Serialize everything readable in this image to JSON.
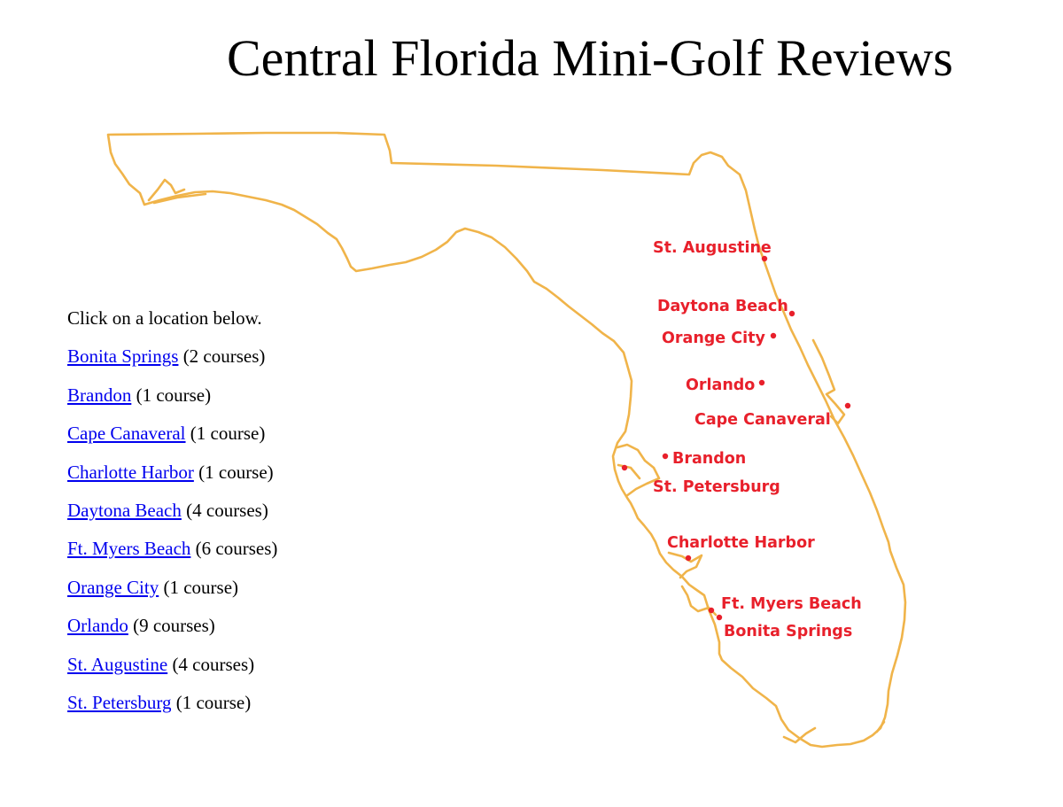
{
  "page": {
    "title": "Central Florida Mini-Golf Reviews",
    "instruction": "Click on a location below."
  },
  "colors": {
    "map_outline": "#F0B44A",
    "map_marker": "#E8202B",
    "link": "#0000EE"
  },
  "locations": [
    {
      "name": "Bonita Springs",
      "count": "(2 courses)"
    },
    {
      "name": "Brandon",
      "count": "(1 course)"
    },
    {
      "name": "Cape Canaveral",
      "count": "(1 course)"
    },
    {
      "name": "Charlotte Harbor",
      "count": "(1 course)"
    },
    {
      "name": "Daytona Beach",
      "count": "(4 courses)"
    },
    {
      "name": "Ft. Myers Beach",
      "count": "(6 courses)"
    },
    {
      "name": "Orange City",
      "count": "(1 course)"
    },
    {
      "name": "Orlando",
      "count": "(9 courses)"
    },
    {
      "name": "St. Augustine",
      "count": "(4 courses)"
    },
    {
      "name": "St. Petersburg",
      "count": "(1 course)"
    }
  ],
  "map": {
    "labels": {
      "st_augustine": "St. Augustine",
      "daytona_beach": "Daytona Beach",
      "orange_city": "Orange City",
      "orlando": "Orlando",
      "cape_canaveral": "Cape Canaveral",
      "brandon": "Brandon",
      "st_petersburg": "St. Petersburg",
      "charlotte_harbor": "Charlotte Harbor",
      "ft_myers_beach": "Ft. Myers Beach",
      "bonita_springs": "Bonita Springs"
    }
  }
}
